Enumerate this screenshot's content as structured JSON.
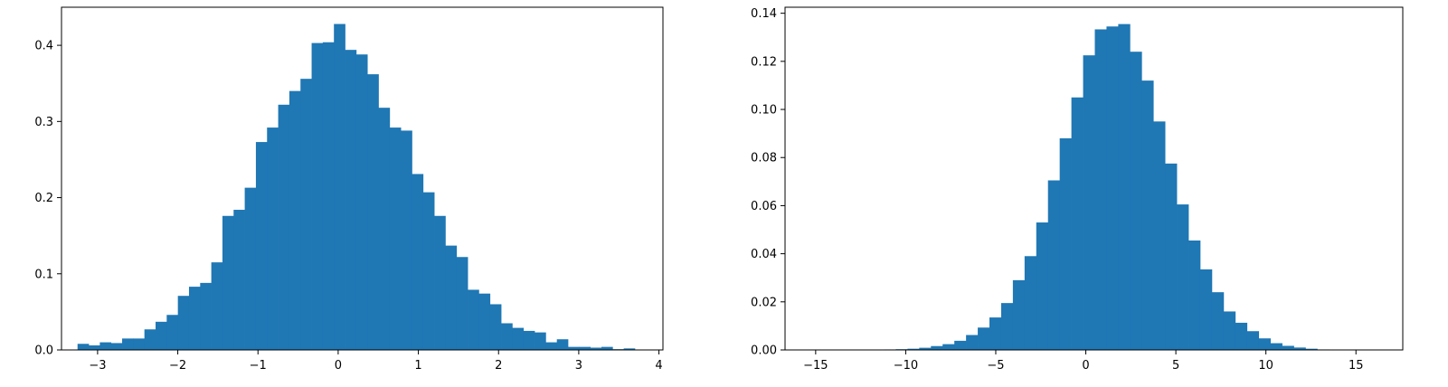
{
  "chart_data": [
    {
      "type": "bar",
      "subtype": "histogram",
      "title": "",
      "xlabel": "",
      "ylabel": "",
      "xlim": [
        -3.45,
        4.05
      ],
      "ylim": [
        0,
        0.45
      ],
      "grid": false,
      "color": "#1f77b4",
      "x_ticks": [
        -3,
        -2,
        -1,
        0,
        1,
        2,
        3,
        4
      ],
      "x_tick_labels": [
        "−3",
        "−2",
        "−1",
        "0",
        "1",
        "2",
        "3",
        "4"
      ],
      "y_ticks": [
        0.0,
        0.1,
        0.2,
        0.3,
        0.4
      ],
      "y_tick_labels": [
        "0.0",
        "0.1",
        "0.2",
        "0.3",
        "0.4"
      ],
      "bin_start": -3.25,
      "bin_width": 0.139,
      "values": [
        0.008,
        0.006,
        0.01,
        0.009,
        0.015,
        0.015,
        0.027,
        0.037,
        0.046,
        0.071,
        0.083,
        0.088,
        0.115,
        0.176,
        0.184,
        0.213,
        0.273,
        0.292,
        0.322,
        0.34,
        0.356,
        0.403,
        0.404,
        0.428,
        0.394,
        0.388,
        0.362,
        0.318,
        0.292,
        0.288,
        0.231,
        0.207,
        0.176,
        0.137,
        0.122,
        0.079,
        0.074,
        0.06,
        0.035,
        0.029,
        0.025,
        0.023,
        0.01,
        0.014,
        0.004,
        0.004,
        0.003,
        0.004,
        0.001,
        0.002
      ]
    },
    {
      "type": "bar",
      "subtype": "histogram",
      "title": "",
      "xlabel": "",
      "ylabel": "",
      "xlim": [
        -16.7,
        17.6
      ],
      "ylim": [
        0,
        0.1425
      ],
      "grid": false,
      "color": "#1f77b4",
      "x_ticks": [
        -15,
        -10,
        -5,
        0,
        5,
        10,
        15
      ],
      "x_tick_labels": [
        "−15",
        "−10",
        "−5",
        "0",
        "5",
        "10",
        "15"
      ],
      "y_ticks": [
        0.0,
        0.02,
        0.04,
        0.06,
        0.08,
        0.1,
        0.12,
        0.14
      ],
      "y_tick_labels": [
        "0.00",
        "0.02",
        "0.04",
        "0.06",
        "0.08",
        "0.10",
        "0.12",
        "0.14"
      ],
      "bin_start": -15.1,
      "bin_width": 0.65,
      "values": [
        0,
        0,
        0,
        0,
        0,
        0,
        0.0002,
        0.0003,
        0.0005,
        0.0009,
        0.0016,
        0.0024,
        0.0038,
        0.0062,
        0.0093,
        0.0135,
        0.0195,
        0.029,
        0.039,
        0.053,
        0.0705,
        0.088,
        0.105,
        0.1225,
        0.1333,
        0.1345,
        0.1355,
        0.124,
        0.112,
        0.095,
        0.0775,
        0.0605,
        0.0455,
        0.0335,
        0.024,
        0.016,
        0.0113,
        0.0078,
        0.0048,
        0.0028,
        0.0017,
        0.001,
        0.0005,
        0.0002,
        0.0001,
        0,
        0,
        0,
        0,
        0,
        0
      ]
    }
  ]
}
